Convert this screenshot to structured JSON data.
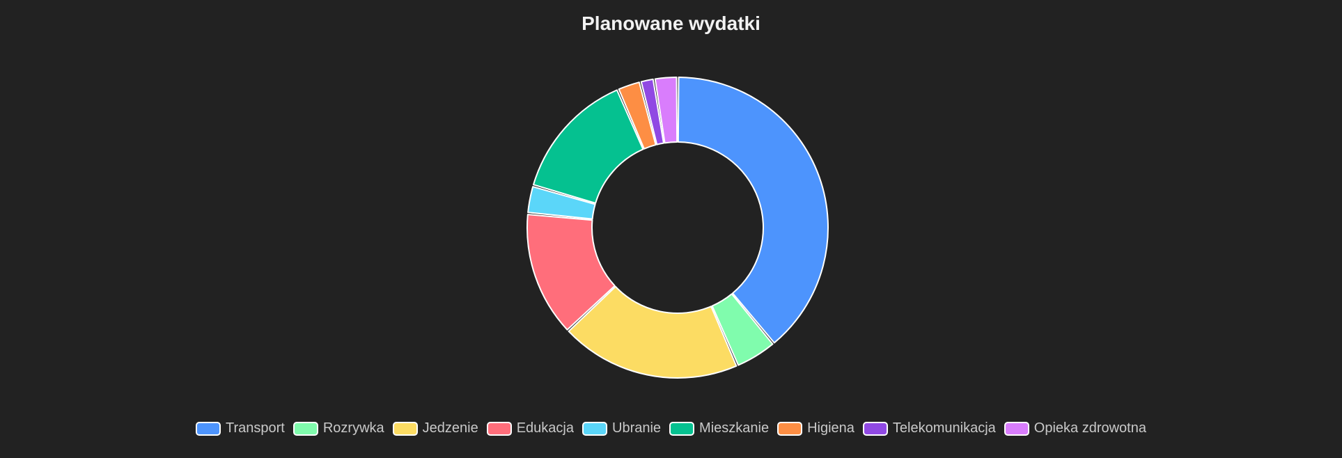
{
  "chart_data": {
    "type": "pie",
    "variant": "doughnut",
    "title": "Planowane wydatki",
    "legend_position": "bottom",
    "start_angle_deg": 0,
    "direction": "clockwise",
    "labels": [
      "Transport",
      "Rozrywka",
      "Jedzenie",
      "Edukacja",
      "Ubranie",
      "Mieszkanie",
      "Higiena",
      "Telekomunikacja",
      "Opieka zdrowotna"
    ],
    "values": [
      39,
      4.5,
      19.5,
      13.5,
      3,
      14,
      2.5,
      1.5,
      2.5
    ],
    "colors": [
      "#4d94fd",
      "#80fcad",
      "#fcdc63",
      "#ff6e7b",
      "#5bd6f9",
      "#05c190",
      "#fd8e44",
      "#9049e3",
      "#d97dfc"
    ],
    "border_color": "#ffffff"
  }
}
